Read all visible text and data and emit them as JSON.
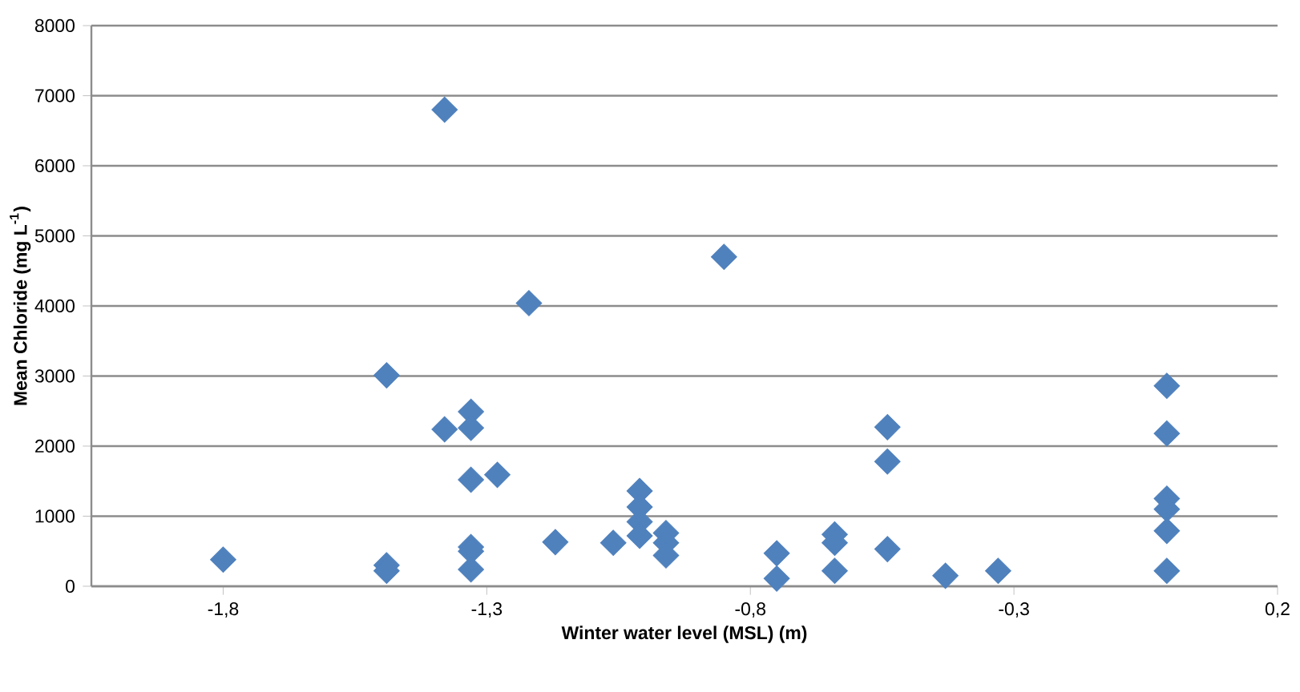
{
  "chart_data": {
    "type": "scatter",
    "xlabel": "Winter water level (MSL) (m)",
    "ylabel": "Mean Chloride (mg L$^{-1}$)",
    "xlim": [
      -2.05,
      0.2
    ],
    "xticks": [
      {
        "value": -1.8,
        "label": "-1,8"
      },
      {
        "value": -1.3,
        "label": "-1,3"
      },
      {
        "value": -0.8,
        "label": "-0,8"
      },
      {
        "value": -0.3,
        "label": "-0,3"
      },
      {
        "value": 0.2,
        "label": "0,2"
      }
    ],
    "ylim": [
      0,
      8000
    ],
    "yticks": [
      0,
      1000,
      2000,
      3000,
      4000,
      5000,
      6000,
      7000,
      8000
    ],
    "grid": "y",
    "marker": "diamond",
    "series": [
      {
        "color": "#4f81bd",
        "x": [
          -1.8,
          -1.38,
          -1.22,
          -1.49,
          -1.33,
          -1.33,
          -1.38,
          -1.33,
          -1.28,
          -1.33,
          -1.33,
          -1.33,
          -1.49,
          -1.49,
          -1.17,
          -1.06,
          -0.85,
          -1.01,
          -1.01,
          -1.01,
          -1.01,
          -0.96,
          -0.96,
          -0.96,
          -0.75,
          -0.75,
          -0.64,
          -0.64,
          -0.64,
          -0.54,
          -0.54,
          -0.54,
          -0.43,
          -0.33,
          -0.01,
          -0.01,
          -0.01,
          -0.01,
          -0.01,
          -0.01
        ],
        "values": [
          380,
          6800,
          4040,
          3010,
          2490,
          2260,
          2240,
          1520,
          1590,
          560,
          500,
          240,
          300,
          220,
          630,
          620,
          4700,
          1360,
          1130,
          920,
          720,
          760,
          620,
          440,
          470,
          110,
          740,
          620,
          220,
          2270,
          1780,
          530,
          150,
          220,
          2860,
          2180,
          1250,
          1100,
          790,
          220
        ]
      }
    ]
  }
}
